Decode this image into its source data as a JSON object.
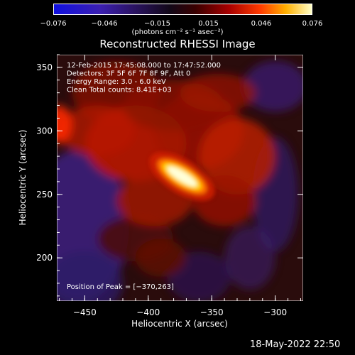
{
  "chart_data": {
    "type": "heatmap",
    "title": "Reconstructed RHESSI Image",
    "xlabel": "Heliocentric X (arcsec)",
    "ylabel": "Heliocentric Y (arcsec)",
    "xlim": [
      -472,
      -278
    ],
    "ylim": [
      166,
      360
    ],
    "xticks": [
      -450,
      -400,
      -350,
      -300
    ],
    "yticks": [
      200,
      250,
      300,
      350
    ],
    "xtick_labels": [
      "−450",
      "−400",
      "−350",
      "−300"
    ],
    "ytick_labels": [
      "200",
      "250",
      "300",
      "350"
    ],
    "colorbar": {
      "range": [
        -0.076,
        0.076
      ],
      "ticks": [
        -0.076,
        -0.046,
        -0.015,
        0.015,
        0.046,
        0.076
      ],
      "tick_labels": [
        "−0.076",
        "−0.046",
        "−0.015",
        "0.015",
        "0.046",
        "0.076"
      ],
      "units": "(photons cm⁻² s⁻¹ asec⁻²)"
    },
    "annotations": [
      "12-Feb-2015 17:45:08.000 to 17:47:52.000",
      "Detectors: 3F 5F 6F 7F 8F 9F, Att 0",
      "Energy Range: 3.0 - 6.0 keV",
      "Clean     Total counts: 8.41E+03"
    ],
    "peak_label": "Position of Peak = [−370,263]",
    "peak": {
      "x": -370,
      "y": 263,
      "value": 0.076
    }
  },
  "footer": {
    "date": "18-May-2022 22:50"
  }
}
